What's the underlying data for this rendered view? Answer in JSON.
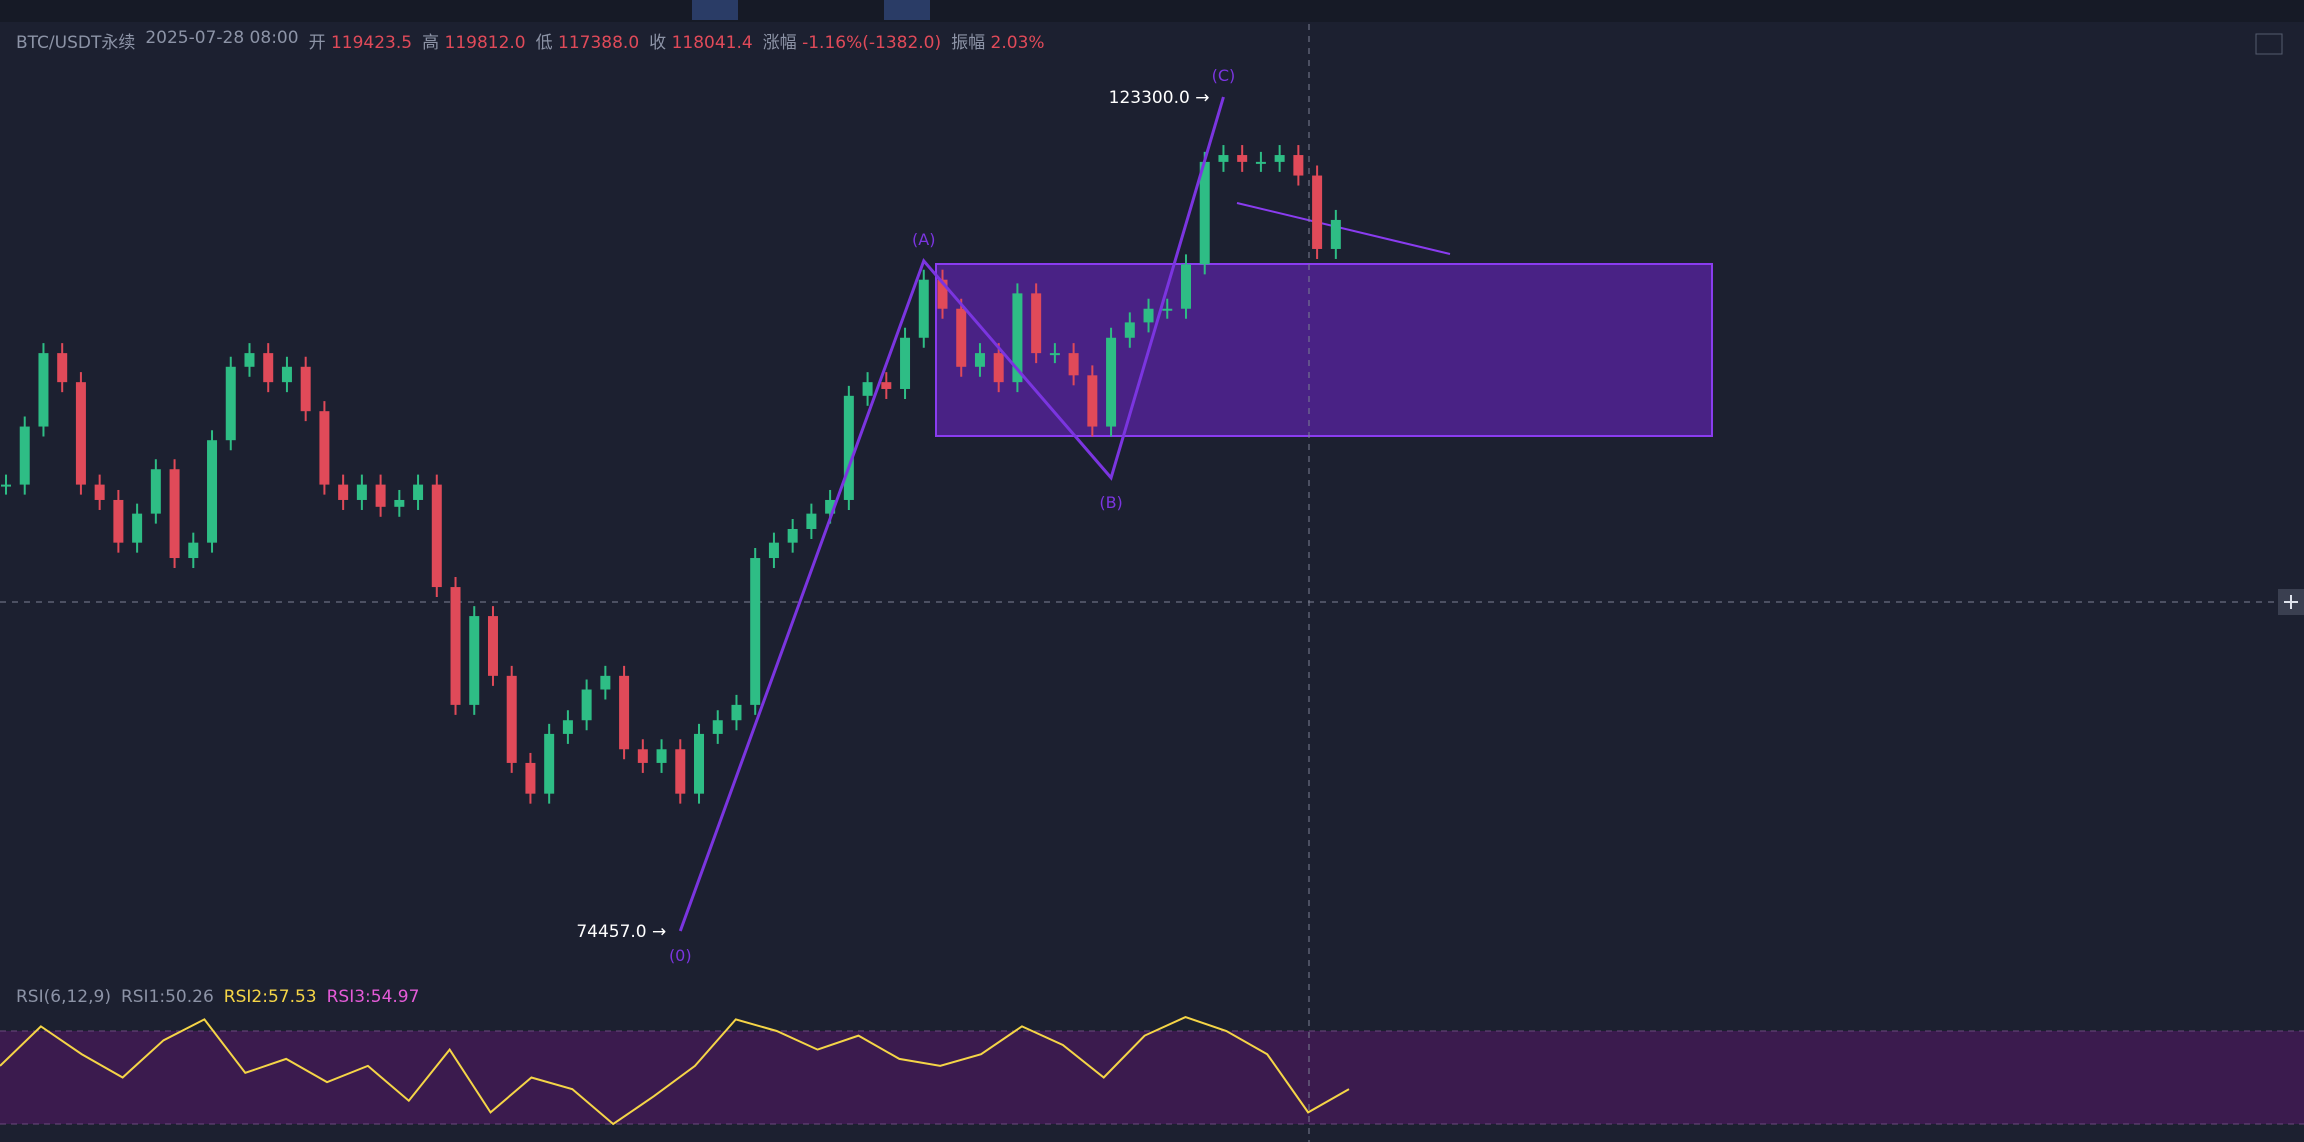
{
  "header": {
    "symbol": "BTC/USDT永续",
    "time": "2025-07-28 08:00",
    "open_label": "开",
    "open": "119423.5",
    "high_label": "高",
    "high": "119812.0",
    "low_label": "低",
    "low": "117388.0",
    "close_label": "收",
    "close": "118041.4",
    "change_label": "涨幅",
    "change": "-1.16%(-1382.0)",
    "amplitude_label": "振幅",
    "amplitude": "2.03%"
  },
  "price_series": {
    "closes": [
      100600,
      104000,
      108300,
      106600,
      100600,
      99700,
      97200,
      98900,
      101500,
      96300,
      97200,
      103200,
      107500,
      108300,
      106600,
      107500,
      104900,
      100600,
      99700,
      100600,
      99300,
      99700,
      100600,
      94600,
      87700,
      92900,
      89400,
      84300,
      82500,
      86000,
      86800,
      88600,
      89400,
      85100,
      84300,
      85100,
      82500,
      86000,
      86800,
      87700,
      96300,
      97200,
      98000,
      98900,
      99700,
      105800,
      106600,
      106200,
      109200,
      112600,
      110900,
      107500,
      108300,
      106600,
      111800,
      108300,
      108300,
      107000,
      104000,
      109200,
      110100,
      110900,
      110900,
      113500,
      119500,
      119900,
      119500,
      119500,
      119900,
      118700,
      114400,
      116100
    ]
  },
  "waves": [
    {
      "label": "(0)",
      "candle": 36,
      "price": 74457.0,
      "price_label": "74457.0 →"
    },
    {
      "label": "(A)",
      "candle": 49,
      "price": 113700
    },
    {
      "label": "(B)",
      "candle": 59,
      "price": 101000
    },
    {
      "label": "(C)",
      "candle": 65,
      "price": 123300,
      "price_label": "123300.0 →"
    }
  ],
  "rsi": {
    "title": "RSI(6,12,9)",
    "rsi1": "RSI1:50.26",
    "rsi2": "RSI2:57.53",
    "rsi3": "RSI3:54.97",
    "band": [
      30,
      70
    ],
    "values": [
      55,
      72,
      60,
      50,
      66,
      75,
      52,
      58,
      48,
      55,
      40,
      62,
      35,
      50,
      45,
      30,
      42,
      55,
      75,
      70,
      62,
      68,
      58,
      55,
      60,
      72,
      64,
      50,
      68,
      76,
      70,
      60,
      35,
      45
    ]
  }
}
